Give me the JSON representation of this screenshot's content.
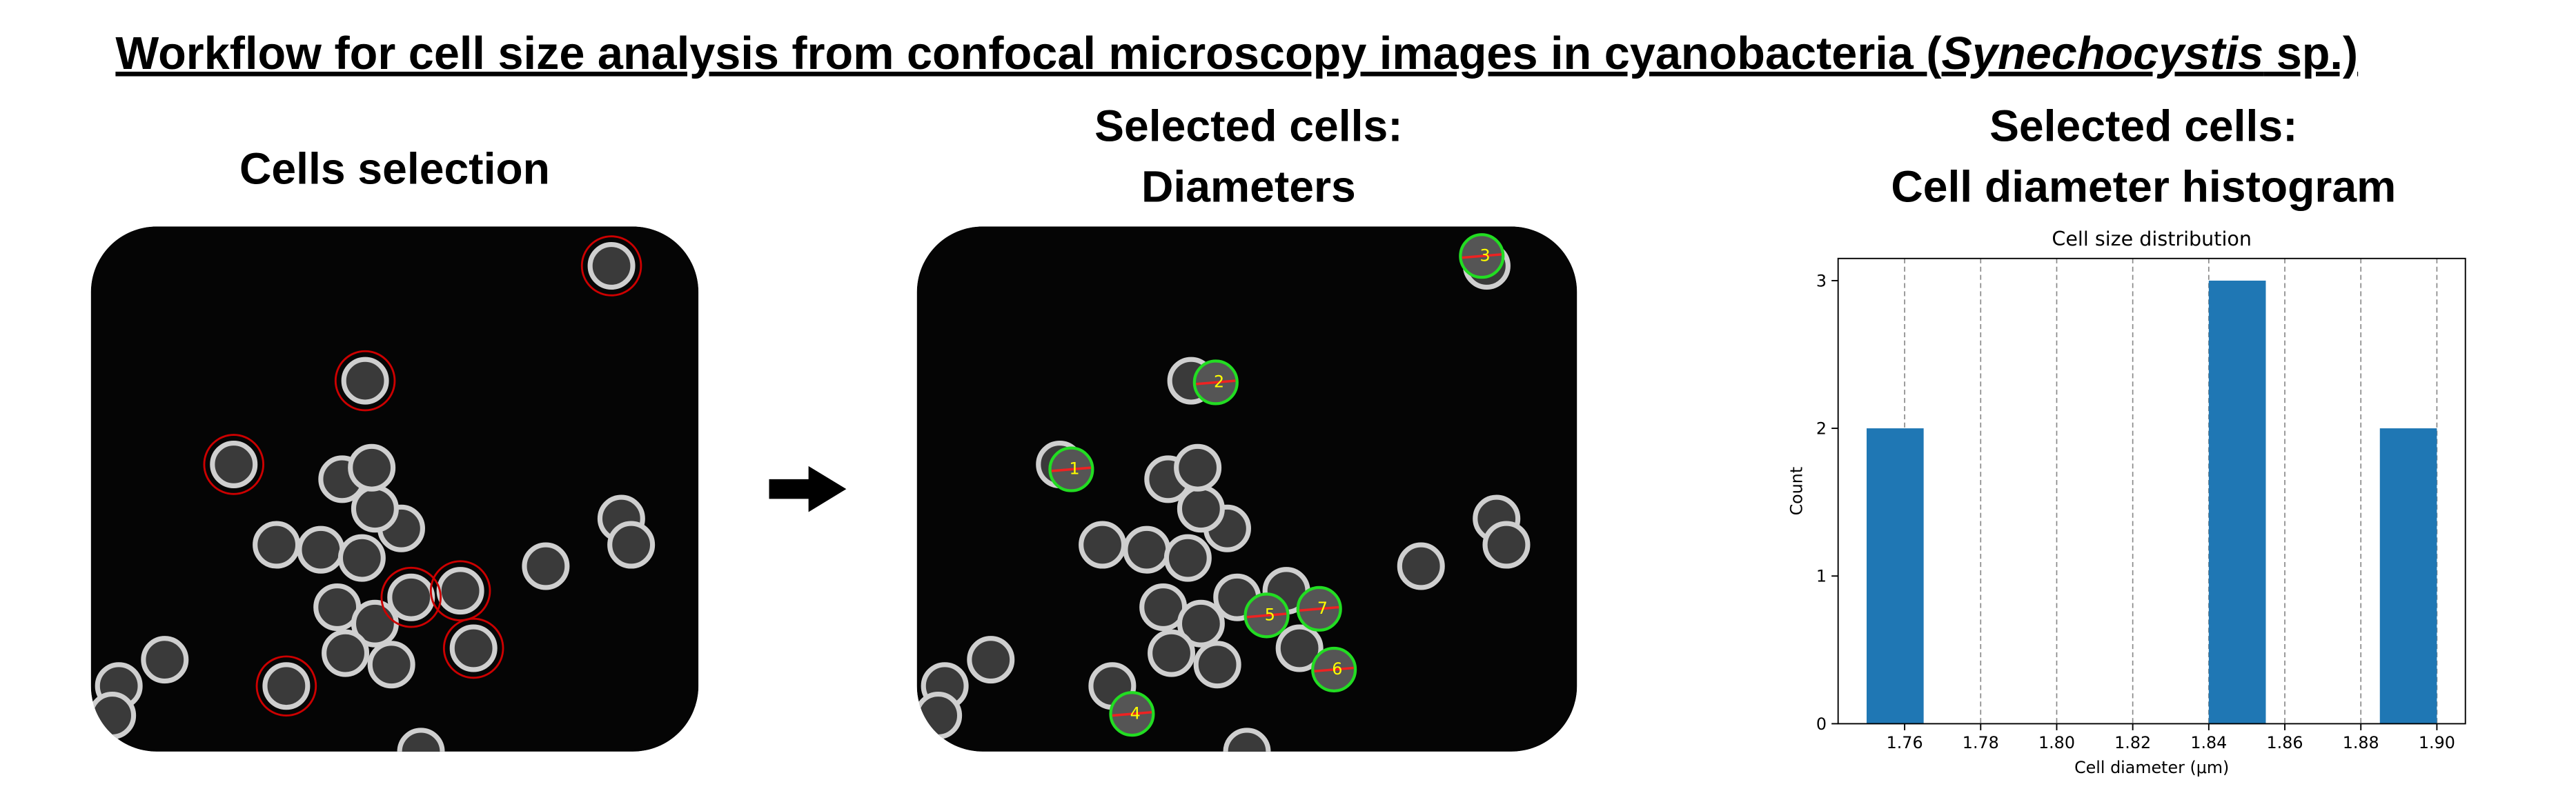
{
  "title_parts": [
    "Workflow for cell size analysis from confocal microscopy images in cyanobacteria (",
    "Synechocystis",
    " sp.)"
  ],
  "panels": [
    {
      "heading": [
        "Cells selection"
      ]
    },
    {
      "heading": [
        "Selected cells:",
        "Diameters"
      ],
      "cell_labels": [
        "1",
        "2",
        "3",
        "4",
        "5",
        "6",
        "7"
      ]
    },
    {
      "heading": [
        "Selected cells:",
        "Cell diameter histogram"
      ]
    }
  ],
  "chart_data": {
    "type": "histogram",
    "title": "Cell size distribution",
    "x_label": "Cell diameter (μm)",
    "y_label": "Count",
    "bins": [
      1.75,
      1.765,
      1.78,
      1.795,
      1.81,
      1.825,
      1.84,
      1.855,
      1.87,
      1.885,
      1.9
    ],
    "values": [
      2,
      0,
      0,
      0,
      0,
      0,
      3,
      0,
      0,
      2
    ],
    "color": "#1f77b4",
    "xlim": [
      1.7425,
      1.9075
    ],
    "xticks": [
      1.76,
      1.78,
      {
        "value": 1.8,
        "label": "1.80"
      },
      1.82,
      1.84,
      1.86,
      1.88,
      {
        "value": 1.9,
        "label": "1.90"
      }
    ],
    "ylim": [
      0,
      3.15
    ],
    "yticks": [
      0,
      1,
      2,
      3
    ],
    "grid": "x"
  }
}
